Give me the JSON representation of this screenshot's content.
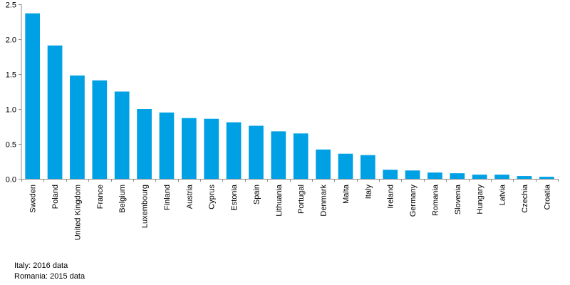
{
  "chart_data": {
    "type": "bar",
    "categories": [
      "Sweden",
      "Poland",
      "United Kingdom",
      "France",
      "Belgium",
      "Luxembourg",
      "Finland",
      "Austria",
      "Cyprus",
      "Estonia",
      "Spain",
      "Lithuania",
      "Portugal",
      "Denmark",
      "Malta",
      "Italy",
      "Ireland",
      "Germany",
      "Romania",
      "Slovenia",
      "Hungary",
      "Latvia",
      "Czechia",
      "Croatia"
    ],
    "values": [
      2.37,
      1.91,
      1.48,
      1.41,
      1.25,
      1.0,
      0.95,
      0.87,
      0.86,
      0.81,
      0.76,
      0.68,
      0.65,
      0.42,
      0.36,
      0.34,
      0.13,
      0.12,
      0.09,
      0.08,
      0.06,
      0.06,
      0.04,
      0.03
    ],
    "ylim": [
      0,
      2.5
    ],
    "yticks": [
      "0.0",
      "0.5",
      "1.0",
      "1.5",
      "2.0",
      "2.5"
    ],
    "grid": false,
    "legend": "none",
    "bar_color": "#00A1E4"
  },
  "notes": [
    "Italy: 2016 data",
    "Romania: 2015 data"
  ]
}
